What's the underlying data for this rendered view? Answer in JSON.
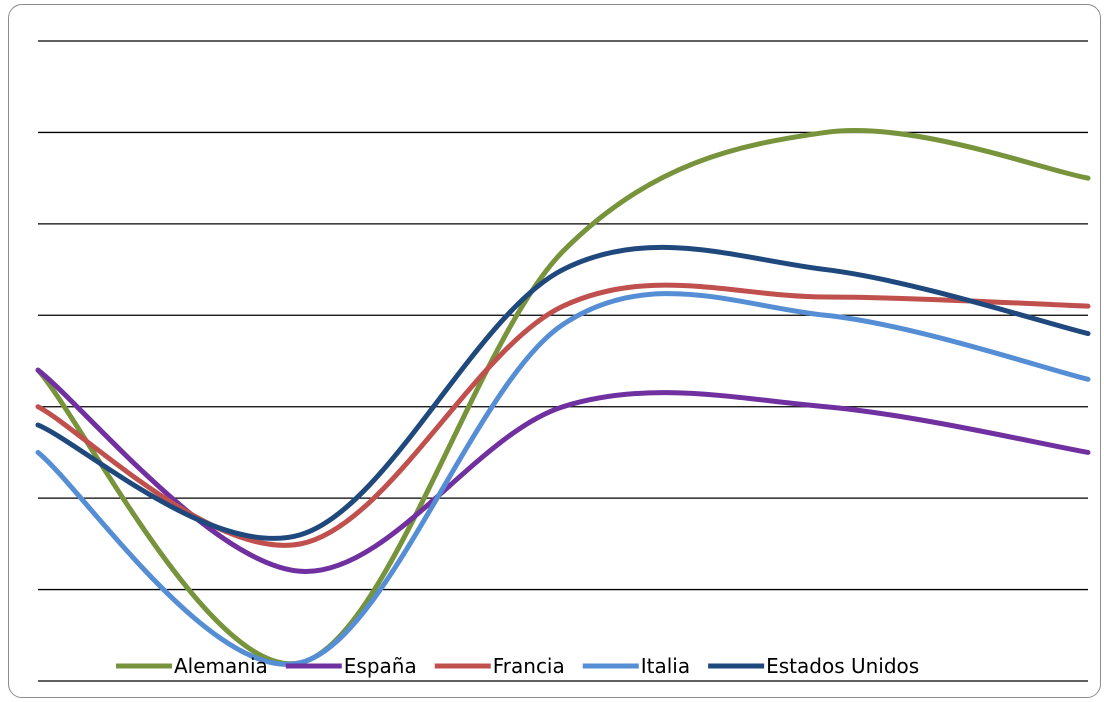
{
  "chart_data": {
    "type": "line",
    "title": "",
    "xlabel": "",
    "ylabel": "",
    "smooth": true,
    "grid": "horizontal",
    "legend": "bottom",
    "ylim": [
      0,
      7
    ],
    "x": [
      1,
      2,
      3,
      4,
      5
    ],
    "series": [
      {
        "name": "Alemania",
        "color": "#77933C",
        "values": [
          3.4,
          0.2,
          4.7,
          6.0,
          5.5
        ]
      },
      {
        "name": "España",
        "color": "#7030A0",
        "values": [
          3.4,
          1.2,
          3.0,
          3.0,
          2.5
        ]
      },
      {
        "name": "Francia",
        "color": "#C0504D",
        "values": [
          3.0,
          1.5,
          4.1,
          4.2,
          4.1
        ]
      },
      {
        "name": "Italia",
        "color": "#558ED5",
        "values": [
          2.5,
          0.2,
          3.9,
          4.0,
          3.3
        ]
      },
      {
        "name": "Estados Unidos",
        "color": "#1F497D",
        "values": [
          2.8,
          1.6,
          4.5,
          4.5,
          3.8
        ]
      }
    ]
  }
}
